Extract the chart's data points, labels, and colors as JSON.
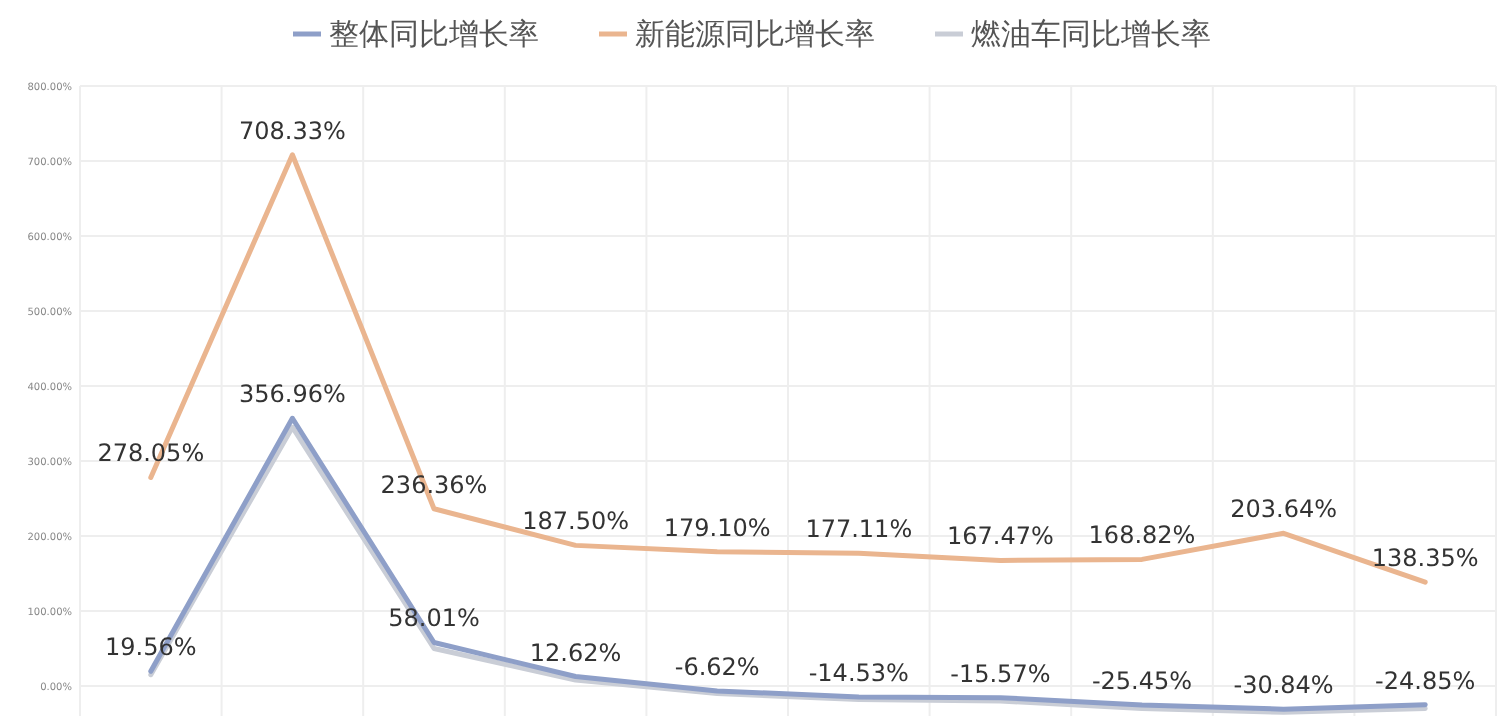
{
  "chart_data": {
    "type": "line",
    "categories": [
      null,
      null,
      null,
      null,
      null,
      null,
      null,
      null,
      null,
      null
    ],
    "series": [
      {
        "name": "整体同比增长率",
        "color": "#8e9fc8",
        "values": [
          19.56,
          356.96,
          58.01,
          12.62,
          -6.62,
          -14.53,
          -15.57,
          -25.45,
          -30.84,
          -24.85
        ],
        "value_labels": [
          "19.56%",
          "356.96%",
          "58.01%",
          "12.62%",
          "-6.62%",
          "-14.53%",
          "-15.57%",
          "-25.45%",
          "-30.84%",
          "-24.85%"
        ]
      },
      {
        "name": "新能源同比增长率",
        "color": "#eab58f",
        "values": [
          278.05,
          708.33,
          236.36,
          187.5,
          179.1,
          177.11,
          167.47,
          168.82,
          203.64,
          138.35
        ],
        "value_labels": [
          "278.05%",
          "708.33%",
          "236.36%",
          "187.50%",
          "179.10%",
          "177.11%",
          "167.47%",
          "168.82%",
          "203.64%",
          "138.35%"
        ]
      },
      {
        "name": "燃油车同比增长率",
        "color": "#c9cdd6",
        "values": [
          15,
          345,
          50,
          8,
          -10,
          -18,
          -20,
          -30,
          -35,
          -30
        ]
      }
    ],
    "ylim": [
      -40,
      800
    ],
    "yticks": [
      {
        "value": 0,
        "label": "0.00%"
      },
      {
        "value": 100,
        "label": "100.00%"
      },
      {
        "value": 200,
        "label": "200.00%"
      },
      {
        "value": 300,
        "label": "300.00%"
      },
      {
        "value": 400,
        "label": "400.00%"
      },
      {
        "value": 500,
        "label": "500.00%"
      },
      {
        "value": 600,
        "label": "600.00%"
      },
      {
        "value": 700,
        "label": "700.00%"
      },
      {
        "value": 800,
        "label": "800.00%"
      }
    ],
    "grid": true,
    "legend": "top",
    "marker": "none",
    "line_style": "solid"
  }
}
